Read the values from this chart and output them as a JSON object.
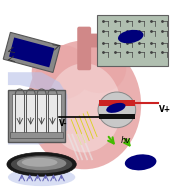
{
  "fig_width": 1.74,
  "fig_height": 1.89,
  "dpi": 100,
  "bg_color": "#ffffff",
  "heart_color": "#e8a8a8",
  "heart_inner": "#f0c0c0",
  "vessel_color": "#d08888",
  "chip_bg": "#888888",
  "chip_frame": "#555555",
  "chip_blue": "#00007a",
  "circuit_bg": "#b0bfb0",
  "circuit_line": "#404040",
  "blue_cell": "#00007a",
  "lavender": "#b8c0e8",
  "lavender2": "#c8d0f0",
  "mech_gray": "#909090",
  "mech_dark": "#555555",
  "mech_white": "#e8e8e8",
  "dish_outer": "#181818",
  "dish_mid": "#484848",
  "dish_inner": "#888888",
  "electrode_red": "#cc2222",
  "electrode_blk": "#111111",
  "opt_gray": "#c8c8c8",
  "green_arr": "#44bb00",
  "yellow": "#d4d400",
  "white_band": "#f0f0f0",
  "label_fontsize": 5.5,
  "label_vplus": "V+",
  "label_vminus": "V-",
  "label_hv": "hv"
}
